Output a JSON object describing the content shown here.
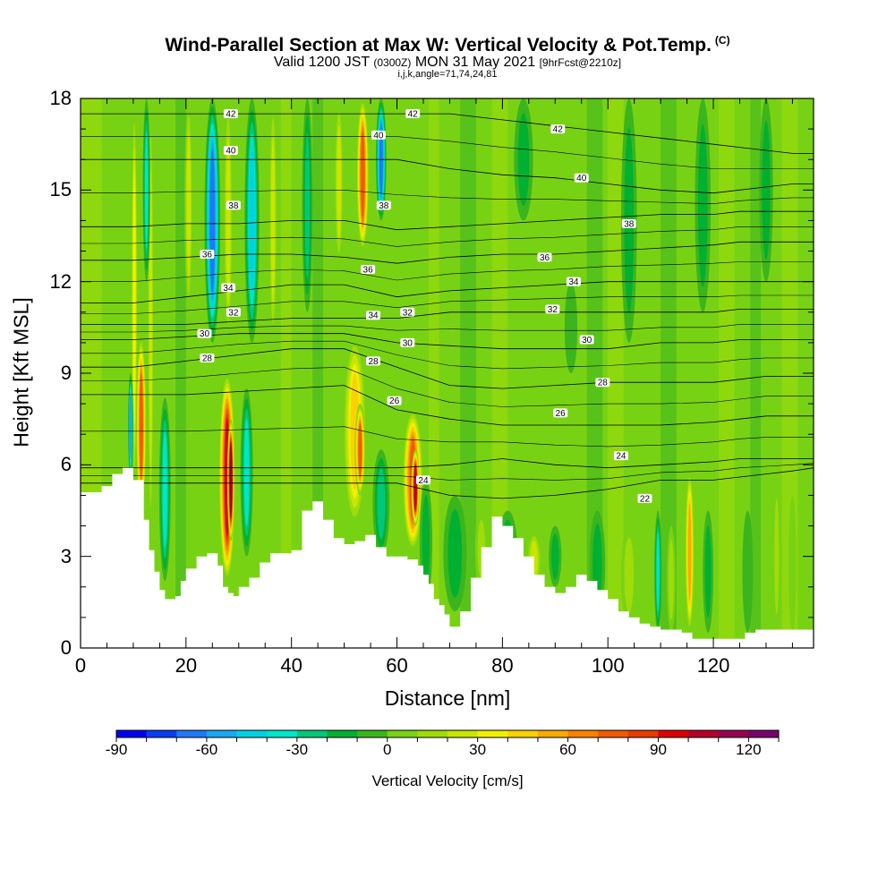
{
  "header": {
    "title": "Wind-Parallel Section at Max W: Vertical Velocity & Pot.Temp.",
    "copyright": "(C)",
    "subtitle_a": "Valid 1200 JST",
    "subtitle_b": "(0300Z)",
    "subtitle_c": "MON 31 May 2021",
    "subtitle_d": "[9hrFcst@2210z]",
    "params": "i,j,k,angle=71,74,24,81"
  },
  "chart_data": {
    "type": "heatmap",
    "title": "Wind-Parallel Section at Max W: Vertical Velocity & Pot.Temp.",
    "xlabel": "Distance [nm]",
    "ylabel": "Height [Kft MSL]",
    "xlim": [
      0,
      139
    ],
    "ylim": [
      0,
      18
    ],
    "x_ticks": [
      0,
      20,
      40,
      60,
      80,
      100,
      120
    ],
    "y_ticks": [
      0,
      3,
      6,
      9,
      12,
      15,
      18
    ],
    "colorbar": {
      "label": "Vertical Velocity [cm/s]",
      "range": [
        -90,
        130
      ],
      "step": 10,
      "ticks": [
        -90,
        -60,
        -30,
        0,
        30,
        60,
        90,
        120
      ],
      "colors": [
        "#0000ee",
        "#0a3cf0",
        "#1f78f5",
        "#19a8f0",
        "#00d2e6",
        "#00e6c8",
        "#00c878",
        "#00b030",
        "#3cb41e",
        "#78d214",
        "#a0dc0a",
        "#c8e600",
        "#f0f000",
        "#fad200",
        "#faaa00",
        "#fa8200",
        "#f05a00",
        "#e63c00",
        "#dc0000",
        "#b40028",
        "#960050",
        "#78006e"
      ]
    },
    "terrain_profile": {
      "x": [
        0,
        4,
        6,
        8,
        10,
        12,
        13,
        14,
        15,
        16,
        18,
        19,
        20,
        22,
        24,
        26,
        27,
        28,
        29,
        30,
        32,
        34,
        36,
        38,
        40,
        42,
        44,
        46,
        48,
        50,
        52,
        54,
        56,
        58,
        60,
        62,
        64,
        65,
        66,
        67,
        68,
        69,
        70,
        72,
        74,
        76,
        78,
        80,
        82,
        84,
        86,
        88,
        90,
        92,
        94,
        96,
        98,
        100,
        102,
        104,
        106,
        108,
        110,
        112,
        114,
        116,
        118,
        120,
        122,
        124,
        126,
        128,
        130,
        132,
        134,
        136,
        138,
        139
      ],
      "y": [
        5.1,
        5.3,
        5.7,
        5.9,
        5.5,
        4.2,
        3.2,
        2.5,
        1.9,
        1.6,
        1.7,
        2.2,
        2.6,
        3.0,
        3.1,
        2.7,
        2.0,
        1.8,
        1.7,
        2.0,
        2.3,
        2.8,
        3.1,
        3.1,
        3.2,
        4.5,
        4.8,
        4.2,
        3.6,
        3.4,
        3.5,
        3.7,
        3.3,
        3.0,
        3.0,
        2.9,
        2.7,
        2.4,
        2.1,
        1.6,
        1.4,
        1.1,
        0.7,
        1.2,
        2.3,
        3.3,
        4.3,
        4.0,
        3.6,
        3.0,
        2.4,
        2.0,
        1.8,
        2.0,
        2.4,
        2.2,
        1.9,
        1.6,
        1.2,
        1.0,
        0.8,
        0.7,
        0.6,
        0.6,
        0.5,
        0.3,
        0.3,
        0.3,
        0.3,
        0.3,
        0.5,
        0.6,
        0.6,
        0.6,
        0.6,
        0.6,
        0.6,
        0.6
      ]
    },
    "velocity_cells": [
      {
        "x": 11.5,
        "bot": 4.4,
        "top": 10.2,
        "hw": 1.0,
        "w": 80
      },
      {
        "x": 10.2,
        "bot": 5.0,
        "top": 18.0,
        "hw": 0.6,
        "w": 40
      },
      {
        "x": 13.3,
        "bot": 3.5,
        "top": 18.0,
        "hw": 0.6,
        "w": 30
      },
      {
        "x": 9.5,
        "bot": 5.5,
        "top": 9.0,
        "hw": 0.5,
        "w": -60
      },
      {
        "x": 16.0,
        "bot": 2.2,
        "top": 8.2,
        "hw": 1.1,
        "w": -40
      },
      {
        "x": 12.5,
        "bot": 12.0,
        "top": 18.0,
        "hw": 0.7,
        "w": -40
      },
      {
        "x": 20.5,
        "bot": 11.0,
        "top": 18.0,
        "hw": 0.8,
        "w": 30
      },
      {
        "x": 25.0,
        "bot": 10.0,
        "top": 18.0,
        "hw": 1.5,
        "w": -70
      },
      {
        "x": 27.8,
        "bot": 2.2,
        "top": 9.0,
        "hw": 1.6,
        "w": 100
      },
      {
        "x": 28.5,
        "bot": 3.5,
        "top": 7.5,
        "hw": 0.7,
        "w": 120
      },
      {
        "x": 28.0,
        "bot": 10.0,
        "top": 18.0,
        "hw": 0.9,
        "w": 30
      },
      {
        "x": 31.5,
        "bot": 3.0,
        "top": 8.5,
        "hw": 1.2,
        "w": -40
      },
      {
        "x": 32.5,
        "bot": 10.0,
        "top": 18.0,
        "hw": 1.4,
        "w": -50
      },
      {
        "x": 36.5,
        "bot": 10.0,
        "top": 18.0,
        "hw": 0.8,
        "w": 30
      },
      {
        "x": 43.0,
        "bot": 11.0,
        "top": 18.0,
        "hw": 1.0,
        "w": -30
      },
      {
        "x": 52.0,
        "bot": 4.0,
        "top": 10.2,
        "hw": 2.3,
        "w": 50
      },
      {
        "x": 53.0,
        "bot": 5.0,
        "top": 8.0,
        "hw": 1.0,
        "w": 80
      },
      {
        "x": 49.0,
        "bot": 12.5,
        "top": 18.0,
        "hw": 0.9,
        "w": 30
      },
      {
        "x": 53.5,
        "bot": 13.0,
        "top": 18.0,
        "hw": 1.2,
        "w": 80
      },
      {
        "x": 57.0,
        "bot": 14.0,
        "top": 18.0,
        "hw": 1.0,
        "w": -70
      },
      {
        "x": 57.0,
        "bot": 3.0,
        "top": 6.5,
        "hw": 1.6,
        "w": -30
      },
      {
        "x": 63.0,
        "bot": 3.2,
        "top": 7.8,
        "hw": 2.0,
        "w": 80
      },
      {
        "x": 63.5,
        "bot": 4.0,
        "top": 6.5,
        "hw": 0.8,
        "w": 110
      },
      {
        "x": 65.5,
        "bot": 1.5,
        "top": 5.5,
        "hw": 1.2,
        "w": -20
      },
      {
        "x": 71.0,
        "bot": 1.2,
        "top": 5.0,
        "hw": 2.2,
        "w": -20
      },
      {
        "x": 76.0,
        "bot": 2.0,
        "top": 4.5,
        "hw": 1.2,
        "w": 20
      },
      {
        "x": 81.0,
        "bot": 2.0,
        "top": 4.5,
        "hw": 1.8,
        "w": -20
      },
      {
        "x": 86.0,
        "bot": 2.0,
        "top": 3.8,
        "hw": 1.5,
        "w": 30
      },
      {
        "x": 90.0,
        "bot": 2.0,
        "top": 4.0,
        "hw": 1.2,
        "w": -20
      },
      {
        "x": 98.0,
        "bot": 1.0,
        "top": 4.5,
        "hw": 1.5,
        "w": -20
      },
      {
        "x": 104.0,
        "bot": 0.8,
        "top": 4.0,
        "hw": 1.5,
        "w": 20
      },
      {
        "x": 109.5,
        "bot": 0.5,
        "top": 4.5,
        "hw": 0.7,
        "w": -40
      },
      {
        "x": 112.0,
        "bot": 0.5,
        "top": 4.0,
        "hw": 0.8,
        "w": 20
      },
      {
        "x": 115.5,
        "bot": 0.5,
        "top": 5.8,
        "hw": 0.9,
        "w": 60
      },
      {
        "x": 119.0,
        "bot": 0.5,
        "top": 4.5,
        "hw": 1.0,
        "w": -20
      },
      {
        "x": 126.5,
        "bot": 0.5,
        "top": 4.5,
        "hw": 1.0,
        "w": -10
      },
      {
        "x": 132.0,
        "bot": 0.5,
        "top": 5.5,
        "hw": 0.7,
        "w": 20
      },
      {
        "x": 135.0,
        "bot": 0.5,
        "top": 5.0,
        "hw": 0.7,
        "w": 10
      },
      {
        "x": 104.0,
        "bot": 10.0,
        "top": 18.0,
        "hw": 1.5,
        "w": -20
      },
      {
        "x": 118.0,
        "bot": 11.0,
        "top": 18.0,
        "hw": 1.5,
        "w": -20
      },
      {
        "x": 130.0,
        "bot": 12.0,
        "top": 18.0,
        "hw": 1.3,
        "w": -20
      },
      {
        "x": 84.0,
        "bot": 14.0,
        "top": 18.0,
        "hw": 1.8,
        "w": -20
      },
      {
        "x": 93.0,
        "bot": 9.0,
        "top": 12.0,
        "hw": 1.2,
        "w": -10
      }
    ],
    "theta_contours": [
      {
        "theta": 22,
        "y": [
          5.4,
          5.4,
          5.4,
          5.4,
          5.4,
          5.4,
          5.4,
          5.0,
          4.9,
          5.0,
          5.2,
          5.5,
          5.5,
          5.6,
          5.7,
          5.8,
          5.9
        ]
      },
      {
        "theta": 24,
        "y": [
          5.9,
          5.9,
          5.9,
          5.9,
          5.9,
          5.9,
          5.9,
          6.0,
          6.2,
          6.0,
          5.9,
          6.0,
          6.1,
          6.2,
          6.2,
          6.2,
          6.2
        ]
      },
      {
        "theta": 26,
        "y": [
          8.3,
          8.3,
          8.3,
          8.4,
          8.5,
          8.6,
          7.8,
          7.5,
          7.3,
          7.3,
          7.3,
          7.3,
          7.4,
          7.5,
          7.6,
          7.6,
          7.6
        ]
      },
      {
        "theta": 28,
        "y": [
          9.2,
          9.2,
          9.4,
          9.6,
          9.8,
          9.8,
          9.2,
          8.6,
          8.5,
          8.6,
          8.7,
          8.7,
          8.7,
          8.8,
          8.9,
          8.9,
          8.9
        ]
      },
      {
        "theta": 30,
        "y": [
          10.1,
          10.1,
          10.2,
          10.3,
          10.3,
          10.3,
          10.0,
          9.9,
          9.8,
          9.8,
          9.8,
          10.0,
          10.0,
          10.1,
          10.1,
          10.1,
          10.1
        ]
      },
      {
        "theta": 32,
        "y": [
          10.6,
          10.6,
          10.6,
          10.7,
          10.8,
          10.8,
          10.8,
          11.0,
          11.0,
          11.0,
          11.0,
          11.0,
          11.0,
          11.1,
          11.1,
          11.1,
          11.1
        ]
      },
      {
        "theta": 34,
        "y": [
          11.3,
          11.3,
          11.5,
          11.7,
          11.9,
          11.9,
          11.5,
          11.7,
          11.8,
          11.9,
          12.0,
          12.0,
          12.0,
          12.0,
          12.0,
          12.0,
          12.0
        ]
      },
      {
        "theta": 36,
        "y": [
          12.7,
          12.7,
          12.8,
          12.9,
          12.9,
          12.8,
          12.6,
          12.8,
          12.9,
          12.9,
          13.0,
          13.1,
          13.2,
          13.3,
          13.3,
          13.3,
          13.3
        ]
      },
      {
        "theta": 38,
        "y": [
          13.8,
          13.8,
          13.9,
          13.9,
          14.0,
          14.0,
          13.7,
          13.8,
          13.9,
          14.0,
          14.1,
          14.2,
          14.2,
          14.3,
          14.3,
          14.3,
          14.3
        ]
      },
      {
        "theta": 40,
        "y": [
          16.0,
          16.0,
          16.0,
          16.0,
          16.0,
          16.0,
          16.0,
          15.7,
          15.5,
          15.4,
          15.2,
          15.0,
          14.9,
          15.0,
          15.1,
          15.2,
          15.2
        ]
      },
      {
        "theta": 42,
        "y": [
          17.5,
          17.5,
          17.5,
          17.5,
          17.5,
          17.5,
          17.5,
          17.5,
          17.3,
          17.1,
          16.9,
          16.7,
          16.5,
          16.4,
          16.3,
          16.2,
          16.2
        ]
      }
    ],
    "contour_x": [
      0,
      10,
      20,
      30,
      40,
      50,
      60,
      70,
      80,
      90,
      100,
      110,
      120,
      125,
      130,
      135,
      139
    ],
    "contour_labels": [
      {
        "text": "42",
        "x": 28.5,
        "y": 17.5
      },
      {
        "text": "42",
        "x": 63.0,
        "y": 17.5
      },
      {
        "text": "42",
        "x": 90.5,
        "y": 17.0
      },
      {
        "text": "40",
        "x": 28.5,
        "y": 16.3
      },
      {
        "text": "40",
        "x": 56.5,
        "y": 16.8
      },
      {
        "text": "40",
        "x": 95.0,
        "y": 15.4
      },
      {
        "text": "38",
        "x": 29.0,
        "y": 14.5
      },
      {
        "text": "38",
        "x": 57.5,
        "y": 14.5
      },
      {
        "text": "38",
        "x": 104.0,
        "y": 13.9
      },
      {
        "text": "36",
        "x": 24.0,
        "y": 12.9
      },
      {
        "text": "36",
        "x": 54.5,
        "y": 12.4
      },
      {
        "text": "36",
        "x": 88.0,
        "y": 12.8
      },
      {
        "text": "34",
        "x": 28.0,
        "y": 11.8
      },
      {
        "text": "34",
        "x": 55.5,
        "y": 10.9
      },
      {
        "text": "34",
        "x": 93.5,
        "y": 12.0
      },
      {
        "text": "32",
        "x": 29.0,
        "y": 11.0
      },
      {
        "text": "32",
        "x": 62.0,
        "y": 11.0
      },
      {
        "text": "32",
        "x": 89.5,
        "y": 11.1
      },
      {
        "text": "30",
        "x": 23.5,
        "y": 10.3
      },
      {
        "text": "30",
        "x": 62.0,
        "y": 10.0
      },
      {
        "text": "30",
        "x": 96.0,
        "y": 10.1
      },
      {
        "text": "28",
        "x": 24.0,
        "y": 9.5
      },
      {
        "text": "28",
        "x": 55.5,
        "y": 9.4
      },
      {
        "text": "28",
        "x": 99.0,
        "y": 8.7
      },
      {
        "text": "26",
        "x": 59.5,
        "y": 8.1
      },
      {
        "text": "26",
        "x": 91.0,
        "y": 7.7
      },
      {
        "text": "24",
        "x": 65.0,
        "y": 5.5
      },
      {
        "text": "24",
        "x": 102.5,
        "y": 6.3
      },
      {
        "text": "22",
        "x": 107.0,
        "y": 4.9
      }
    ]
  }
}
